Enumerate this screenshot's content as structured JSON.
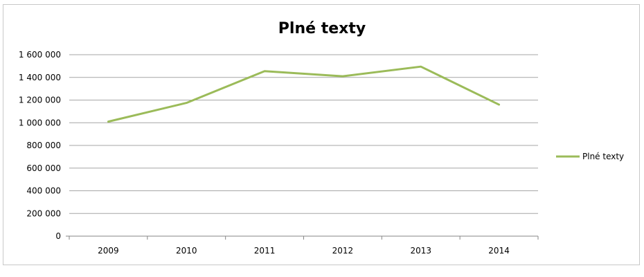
{
  "chart_data": {
    "type": "line",
    "title": "Plné texty",
    "xlabel": "",
    "ylabel": "",
    "categories": [
      "2009",
      "2010",
      "2011",
      "2012",
      "2013",
      "2014"
    ],
    "series": [
      {
        "name": "Plné texty",
        "values": [
          1010000,
          1175000,
          1455000,
          1410000,
          1495000,
          1160000
        ],
        "color": "#9bbb59"
      }
    ],
    "ylim": [
      0,
      1600000
    ],
    "ytick_labels": [
      "0",
      "200 000",
      "400 000",
      "600 000",
      "800 000",
      "1 000 000",
      "1 200 000",
      "1 400 000",
      "1 600 000"
    ],
    "grid": true,
    "legend_position": "right"
  }
}
